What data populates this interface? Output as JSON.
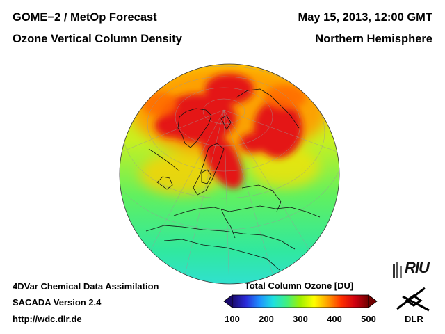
{
  "header": {
    "title_left": "GOME−2 / MetOp Forecast",
    "subtitle_left": "Ozone Vertical Column Density",
    "title_right": "May 15, 2013, 12:00 GMT",
    "subtitle_right": "Northern Hemisphere"
  },
  "footer": {
    "method": "4DVar Chemical Data Assimilation",
    "version": "SACADA Version 2.4",
    "url": "http://wdc.dlr.de"
  },
  "colorbar": {
    "title": "Total Column Ozone [DU]",
    "ticks": [
      "100",
      "200",
      "300",
      "400",
      "500"
    ],
    "range": [
      100,
      500
    ],
    "colors": [
      "#1a0a6e",
      "#2a2ad8",
      "#1e90ff",
      "#1ee0e0",
      "#40f080",
      "#a0f000",
      "#ffff00",
      "#ffa000",
      "#ff3000",
      "#d00010",
      "#700000"
    ]
  },
  "logos": {
    "riu": "RIU",
    "dlr": "DLR"
  },
  "map": {
    "projection": "orthographic",
    "hemisphere": "Northern",
    "base_color": "#30e080",
    "high_ozone_color": "#e41818"
  }
}
